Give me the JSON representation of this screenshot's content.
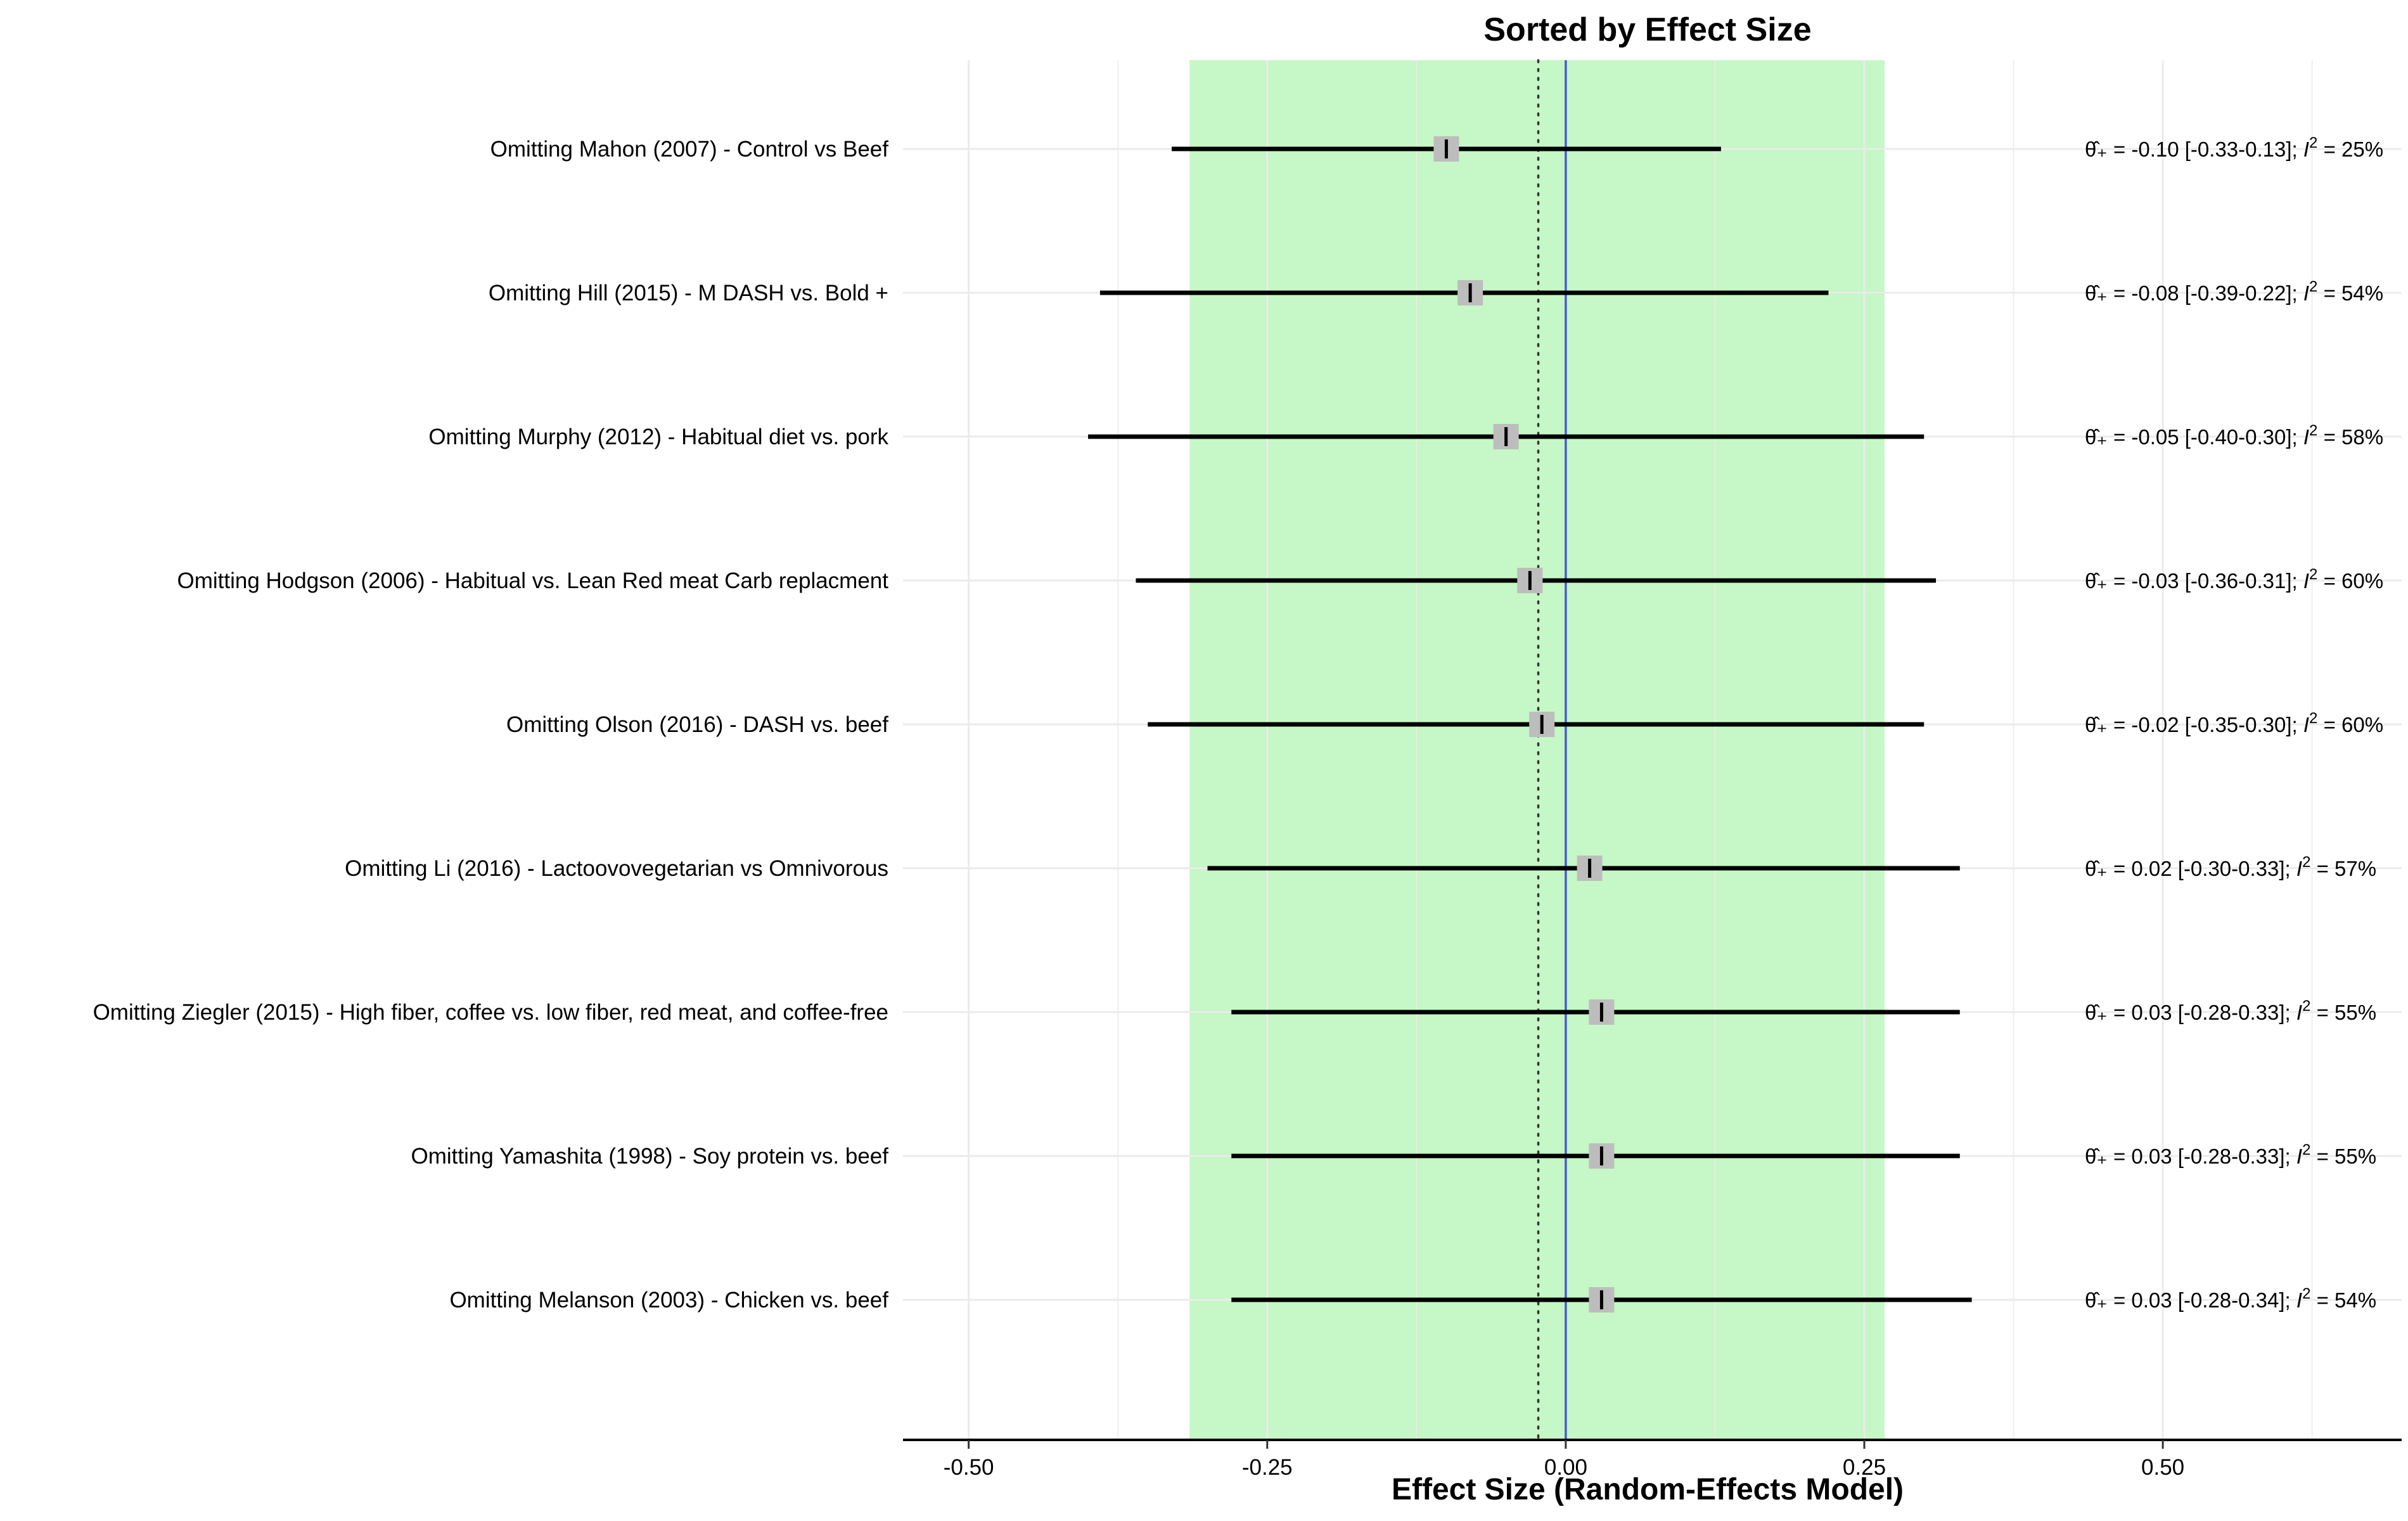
{
  "chart_data": {
    "type": "forest",
    "title": "Sorted by Effect Size",
    "xlabel": "Effect Size (Random-Effects Model)",
    "xlim": [
      -0.555,
      0.7
    ],
    "x_ticks": [
      -0.5,
      -0.25,
      0.0,
      0.25,
      0.5
    ],
    "x_tick_labels": [
      "-0.50",
      "-0.25",
      "0.00",
      "0.25",
      "0.50"
    ],
    "shaded_interval": [
      -0.315,
      0.267
    ],
    "pooled_estimate": -0.023,
    "reference_line": 0,
    "colors": {
      "shade": "#c6f7c6",
      "reference_line": "#4a5bd0",
      "marker_box": "#bdbdbd",
      "ci_line": "#000000",
      "grid": "#ebebeb"
    },
    "rows": [
      {
        "label": "Omitting Mahon (2007) - Control vs Beef",
        "estimate": -0.1,
        "lower": -0.33,
        "upper": 0.13,
        "stat_prefix": "θ̂₊ = -0.10 [-0.33-0.13]; ",
        "i2_label": "I",
        "i2_sup": "2",
        "i2_value": " = 25%"
      },
      {
        "label": "Omitting Hill (2015) - M DASH vs. Bold +",
        "estimate": -0.08,
        "lower": -0.39,
        "upper": 0.22,
        "stat_prefix": "θ̂₊ = -0.08 [-0.39-0.22]; ",
        "i2_label": "I",
        "i2_sup": "2",
        "i2_value": " = 54%"
      },
      {
        "label": "Omitting Murphy (2012) - Habitual diet vs. pork",
        "estimate": -0.05,
        "lower": -0.4,
        "upper": 0.3,
        "stat_prefix": "θ̂₊ = -0.05 [-0.40-0.30]; ",
        "i2_label": "I",
        "i2_sup": "2",
        "i2_value": " = 58%"
      },
      {
        "label": "Omitting Hodgson (2006) - Habitual vs. Lean Red meat Carb replacment",
        "estimate": -0.03,
        "lower": -0.36,
        "upper": 0.31,
        "stat_prefix": "θ̂₊ = -0.03 [-0.36-0.31]; ",
        "i2_label": "I",
        "i2_sup": "2",
        "i2_value": " = 60%"
      },
      {
        "label": "Omitting Olson (2016) - DASH vs. beef",
        "estimate": -0.02,
        "lower": -0.35,
        "upper": 0.3,
        "stat_prefix": "θ̂₊ = -0.02 [-0.35-0.30]; ",
        "i2_label": "I",
        "i2_sup": "2",
        "i2_value": " = 60%"
      },
      {
        "label": "Omitting Li (2016) - Lactoovovegetarian vs Omnivorous",
        "estimate": 0.02,
        "lower": -0.3,
        "upper": 0.33,
        "stat_prefix": "θ̂₊ =  0.02 [-0.30-0.33]; ",
        "i2_label": "I",
        "i2_sup": "2",
        "i2_value": " = 57%"
      },
      {
        "label": "Omitting Ziegler (2015) - High fiber, coffee vs. low fiber, red meat, and coffee-free",
        "estimate": 0.03,
        "lower": -0.28,
        "upper": 0.33,
        "stat_prefix": "θ̂₊ =  0.03 [-0.28-0.33]; ",
        "i2_label": "I",
        "i2_sup": "2",
        "i2_value": " = 55%"
      },
      {
        "label": "Omitting Yamashita (1998) - Soy protein vs. beef",
        "estimate": 0.03,
        "lower": -0.28,
        "upper": 0.33,
        "stat_prefix": "θ̂₊ =  0.03 [-0.28-0.33]; ",
        "i2_label": "I",
        "i2_sup": "2",
        "i2_value": " = 55%"
      },
      {
        "label": "Omitting Melanson (2003) - Chicken vs. beef",
        "estimate": 0.03,
        "lower": -0.28,
        "upper": 0.34,
        "stat_prefix": "θ̂₊ =  0.03 [-0.28-0.34]; ",
        "i2_label": "I",
        "i2_sup": "2",
        "i2_value": " = 54%"
      }
    ]
  }
}
